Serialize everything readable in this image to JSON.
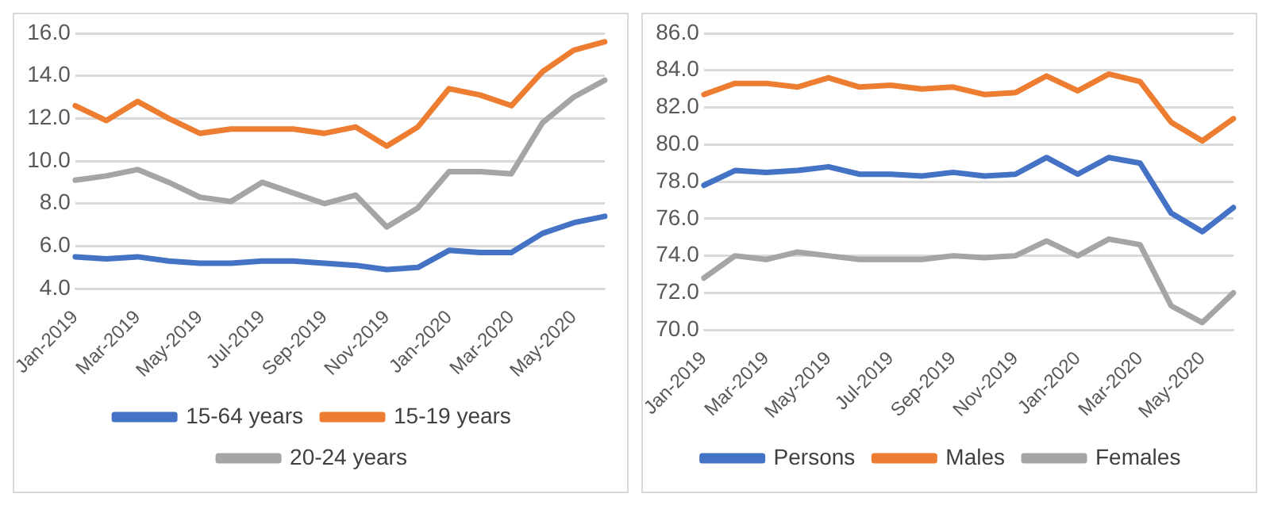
{
  "chart_data": [
    {
      "type": "line",
      "categories": [
        "Jan-2019",
        null,
        "Mar-2019",
        null,
        "May-2019",
        null,
        "Jul-2019",
        null,
        "Sep-2019",
        null,
        "Nov-2019",
        null,
        "Jan-2020",
        null,
        "Mar-2020",
        null,
        "May-2020",
        null
      ],
      "series": [
        {
          "name": "15-64 years",
          "color": "#4472c4",
          "values": [
            5.5,
            5.4,
            5.5,
            5.3,
            5.2,
            5.2,
            5.3,
            5.3,
            5.2,
            5.1,
            4.9,
            5.0,
            5.8,
            5.7,
            5.7,
            6.6,
            7.1,
            7.4
          ]
        },
        {
          "name": "15-19 years",
          "color": "#ed7d31",
          "values": [
            12.6,
            11.9,
            12.8,
            12.0,
            11.3,
            11.5,
            11.5,
            11.5,
            11.3,
            11.6,
            10.7,
            11.6,
            13.4,
            13.1,
            12.6,
            14.2,
            15.2,
            15.6
          ]
        },
        {
          "name": "20-24 years",
          "color": "#a5a5a5",
          "values": [
            9.1,
            9.3,
            9.6,
            9.0,
            8.3,
            8.1,
            9.0,
            8.5,
            8.0,
            8.4,
            6.9,
            7.8,
            9.5,
            9.5,
            9.4,
            11.8,
            13.0,
            13.8
          ]
        }
      ],
      "ylim": [
        4,
        16
      ],
      "yticks": [
        {
          "value": 4,
          "label": "4.0"
        },
        {
          "value": 6,
          "label": "6.0"
        },
        {
          "value": 8,
          "label": "8.0"
        },
        {
          "value": 10,
          "label": "10.0"
        },
        {
          "value": 12,
          "label": "12.0"
        },
        {
          "value": 14,
          "label": "14.0"
        },
        {
          "value": 16,
          "label": "16.0"
        }
      ],
      "grid": "y",
      "legend": "bottom",
      "marker": "none",
      "line_style": "solid"
    },
    {
      "type": "line",
      "categories": [
        "Jan-2019",
        null,
        "Mar-2019",
        null,
        "May-2019",
        null,
        "Jul-2019",
        null,
        "Sep-2019",
        null,
        "Nov-2019",
        null,
        "Jan-2020",
        null,
        "Mar-2020",
        null,
        "May-2020",
        null
      ],
      "series": [
        {
          "name": "Persons",
          "color": "#4472c4",
          "values": [
            77.8,
            78.6,
            78.5,
            78.6,
            78.8,
            78.4,
            78.4,
            78.3,
            78.5,
            78.3,
            78.4,
            79.3,
            78.4,
            79.3,
            79.0,
            76.3,
            75.3,
            76.6
          ]
        },
        {
          "name": "Males",
          "color": "#ed7d31",
          "values": [
            82.7,
            83.3,
            83.3,
            83.1,
            83.6,
            83.1,
            83.2,
            83.0,
            83.1,
            82.7,
            82.8,
            83.7,
            82.9,
            83.8,
            83.4,
            81.2,
            80.2,
            81.4
          ]
        },
        {
          "name": "Females",
          "color": "#a5a5a5",
          "values": [
            72.8,
            74.0,
            73.8,
            74.2,
            74.0,
            73.8,
            73.8,
            73.8,
            74.0,
            73.9,
            74.0,
            74.8,
            74.0,
            74.9,
            74.6,
            71.3,
            70.4,
            72.0
          ]
        }
      ],
      "ylim": [
        70,
        86
      ],
      "yticks": [
        {
          "value": 70,
          "label": "70.0"
        },
        {
          "value": 72,
          "label": "72.0"
        },
        {
          "value": 74,
          "label": "74.0"
        },
        {
          "value": 76,
          "label": "76.0"
        },
        {
          "value": 78,
          "label": "78.0"
        },
        {
          "value": 80,
          "label": "80.0"
        },
        {
          "value": 82,
          "label": "82.0"
        },
        {
          "value": 84,
          "label": "84.0"
        },
        {
          "value": 86,
          "label": "86.0"
        }
      ],
      "grid": "y",
      "legend": "bottom",
      "marker": "none",
      "line_style": "solid"
    }
  ]
}
